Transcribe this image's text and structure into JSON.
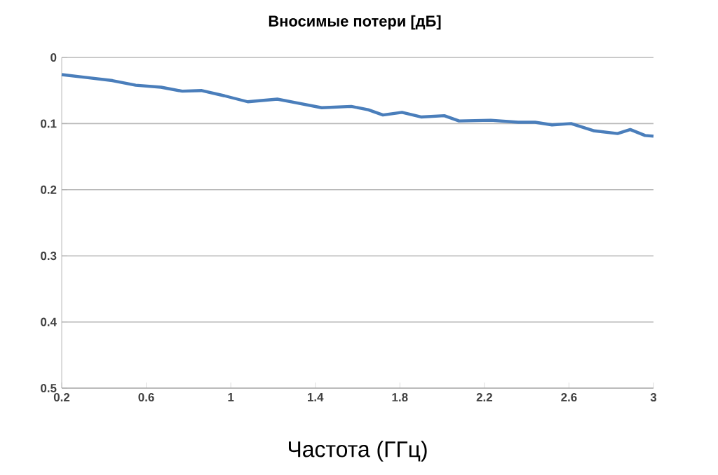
{
  "chart_data": {
    "type": "line",
    "title": "Вносимые потери [дБ]",
    "xlabel": "Частота (ГГц)",
    "xlim": [
      0.2,
      3
    ],
    "xticks": [
      0.2,
      0.6,
      1,
      1.4,
      1.8,
      2.2,
      2.6,
      3
    ],
    "ylim": [
      0.5,
      0
    ],
    "yticks": [
      0,
      0.1,
      0.2,
      0.3,
      0.4,
      0.5
    ],
    "grid": "y",
    "line_style": "solid",
    "x": [
      0.2,
      0.31,
      0.44,
      0.55,
      0.67,
      0.77,
      0.86,
      0.97,
      1.08,
      1.22,
      1.3,
      1.43,
      1.57,
      1.65,
      1.72,
      1.81,
      1.9,
      2.01,
      2.08,
      2.23,
      2.36,
      2.44,
      2.52,
      2.61,
      2.72,
      2.83,
      2.89,
      2.96,
      3.0
    ],
    "series": [
      {
        "color": "#4a7ebb",
        "values": [
          0.026,
          0.03,
          0.035,
          0.042,
          0.045,
          0.051,
          0.05,
          0.058,
          0.067,
          0.063,
          0.068,
          0.076,
          0.074,
          0.079,
          0.087,
          0.083,
          0.09,
          0.088,
          0.096,
          0.095,
          0.098,
          0.098,
          0.102,
          0.1,
          0.111,
          0.115,
          0.109,
          0.118,
          0.119
        ]
      }
    ]
  }
}
